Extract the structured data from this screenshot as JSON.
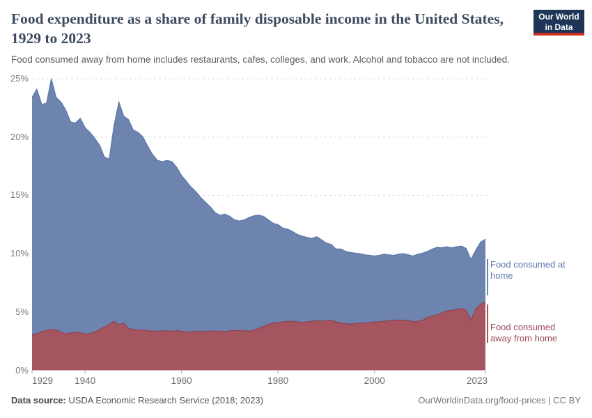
{
  "header": {
    "title": "Food expenditure as a share of family disposable income in the United States, 1929 to 2023",
    "subtitle": "Food consumed away from home includes restaurants, cafes, colleges, and work. Alcohol and tobacco are not included.",
    "logo": {
      "line1": "Our World",
      "line2": "in Data",
      "bg_color": "#1d3556",
      "accent_color": "#cb2d22"
    }
  },
  "footer": {
    "source_label": "Data source:",
    "source_text": " USDA Economic Research Service (2018; 2023)",
    "link_text": "OurWorldinData.org/food-prices | CC BY"
  },
  "chart_data": {
    "type": "area",
    "stacked": true,
    "title": "Food expenditure as a share of family disposable income in the United States, 1929 to 2023",
    "xlabel": "",
    "ylabel": "",
    "ylim": [
      0,
      25
    ],
    "yticks": [
      0,
      5,
      10,
      15,
      20,
      25
    ],
    "ytick_suffix": "%",
    "xticks": [
      1929,
      1940,
      1960,
      1980,
      2000,
      2023
    ],
    "grid": "dashed",
    "legend_position": "right",
    "x": [
      1929,
      1930,
      1931,
      1932,
      1933,
      1934,
      1935,
      1936,
      1937,
      1938,
      1939,
      1940,
      1941,
      1942,
      1943,
      1944,
      1945,
      1946,
      1947,
      1948,
      1949,
      1950,
      1951,
      1952,
      1953,
      1954,
      1955,
      1956,
      1957,
      1958,
      1959,
      1960,
      1961,
      1962,
      1963,
      1964,
      1965,
      1966,
      1967,
      1968,
      1969,
      1970,
      1971,
      1972,
      1973,
      1974,
      1975,
      1976,
      1977,
      1978,
      1979,
      1980,
      1981,
      1982,
      1983,
      1984,
      1985,
      1986,
      1987,
      1988,
      1989,
      1990,
      1991,
      1992,
      1993,
      1994,
      1995,
      1996,
      1997,
      1998,
      1999,
      2000,
      2001,
      2002,
      2003,
      2004,
      2005,
      2006,
      2007,
      2008,
      2009,
      2010,
      2011,
      2012,
      2013,
      2014,
      2015,
      2016,
      2017,
      2018,
      2019,
      2020,
      2021,
      2022,
      2023
    ],
    "series": [
      {
        "name": "Food consumed away from home",
        "label_lines": [
          "Food consumed",
          "away from home"
        ],
        "color": "#a4555f",
        "stroke_color": "#8f4350",
        "label_color": "#9d4955",
        "values": [
          3.0,
          3.15,
          3.3,
          3.4,
          3.5,
          3.45,
          3.3,
          3.1,
          3.2,
          3.25,
          3.2,
          3.1,
          3.15,
          3.3,
          3.5,
          3.7,
          3.95,
          4.2,
          3.9,
          4.05,
          3.6,
          3.5,
          3.45,
          3.45,
          3.4,
          3.35,
          3.35,
          3.4,
          3.35,
          3.35,
          3.4,
          3.35,
          3.3,
          3.3,
          3.35,
          3.35,
          3.3,
          3.35,
          3.35,
          3.35,
          3.3,
          3.4,
          3.4,
          3.4,
          3.4,
          3.35,
          3.45,
          3.6,
          3.75,
          3.95,
          4.05,
          4.1,
          4.15,
          4.2,
          4.2,
          4.15,
          4.1,
          4.15,
          4.2,
          4.25,
          4.2,
          4.25,
          4.3,
          4.15,
          4.05,
          4.0,
          3.95,
          4.0,
          4.05,
          4.05,
          4.1,
          4.15,
          4.15,
          4.2,
          4.25,
          4.3,
          4.3,
          4.3,
          4.25,
          4.15,
          4.2,
          4.3,
          4.55,
          4.65,
          4.75,
          4.95,
          5.1,
          5.15,
          5.2,
          5.3,
          5.15,
          4.3,
          5.25,
          5.65,
          5.85
        ]
      },
      {
        "name": "Food consumed at home",
        "label_lines": [
          "Food consumed at",
          "home"
        ],
        "color": "#6c84ae",
        "stroke_color": "#5c77a9",
        "label_color": "#5e77aa",
        "values": [
          20.4,
          20.95,
          19.5,
          19.5,
          21.5,
          19.95,
          19.7,
          19.2,
          18.1,
          17.95,
          18.4,
          17.7,
          17.25,
          16.6,
          15.8,
          14.6,
          14.15,
          16.8,
          19.1,
          17.75,
          17.9,
          17.1,
          16.95,
          16.55,
          15.8,
          15.15,
          14.65,
          14.5,
          14.65,
          14.55,
          14.0,
          13.35,
          12.9,
          12.4,
          11.95,
          11.45,
          11.1,
          10.65,
          10.15,
          9.95,
          10.1,
          9.8,
          9.5,
          9.4,
          9.5,
          9.75,
          9.8,
          9.7,
          9.45,
          8.95,
          8.55,
          8.4,
          8.05,
          7.9,
          7.7,
          7.5,
          7.4,
          7.25,
          7.1,
          7.2,
          7.0,
          6.65,
          6.5,
          6.25,
          6.35,
          6.2,
          6.15,
          6.05,
          5.95,
          5.85,
          5.75,
          5.65,
          5.7,
          5.75,
          5.65,
          5.55,
          5.65,
          5.7,
          5.65,
          5.65,
          5.75,
          5.75,
          5.65,
          5.75,
          5.8,
          5.55,
          5.5,
          5.35,
          5.4,
          5.35,
          5.3,
          5.2,
          5.05,
          5.35,
          5.4
        ]
      }
    ]
  }
}
